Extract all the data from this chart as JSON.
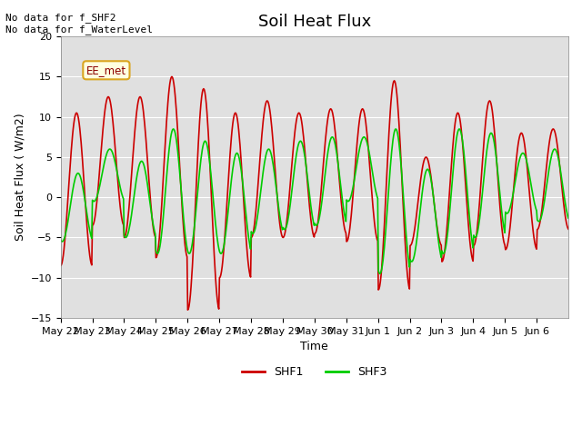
{
  "title": "Soil Heat Flux",
  "xlabel": "Time",
  "ylabel": "Soil Heat Flux ( W/m2)",
  "ylim": [
    -15,
    20
  ],
  "yticks": [
    -15,
    -10,
    -5,
    0,
    5,
    10,
    15,
    20
  ],
  "text_top_left": "No data for f_SHF2\nNo data for f_WaterLevel",
  "annotation_box": "EE_met",
  "shf1_color": "#cc0000",
  "shf3_color": "#00cc00",
  "background_color": "#e0e0e0",
  "legend_labels": [
    "SHF1",
    "SHF3"
  ],
  "x_tick_labels": [
    "May 22",
    "May 23",
    "May 24",
    "May 25",
    "May 26",
    "May 27",
    "May 28",
    "May 29",
    "May 30",
    "May 31",
    "Jun 1",
    "Jun 2",
    "Jun 3",
    "Jun 4",
    "Jun 5",
    "Jun 6"
  ],
  "num_days": 16,
  "shf1_peaks": [
    10.5,
    12.5,
    12.5,
    15.0,
    13.5,
    10.5,
    12.0,
    10.5,
    11.0,
    11.0,
    14.5,
    5.0,
    10.5,
    12.0,
    8.0,
    8.5
  ],
  "shf1_troughs": [
    -8.5,
    -3.5,
    -5.0,
    -7.5,
    -14.0,
    -10.0,
    -5.0,
    -5.0,
    -4.5,
    -5.5,
    -11.5,
    -6.0,
    -8.0,
    -6.0,
    -6.5,
    -4.0
  ],
  "shf3_peaks": [
    3.0,
    6.0,
    4.5,
    8.5,
    7.0,
    5.5,
    6.0,
    7.0,
    7.5,
    7.5,
    8.5,
    3.5,
    8.5,
    8.0,
    5.5,
    6.0
  ],
  "shf3_troughs": [
    -5.5,
    -0.5,
    -5.0,
    -7.0,
    -7.0,
    -7.0,
    -4.5,
    -4.0,
    -3.5,
    -0.5,
    -9.5,
    -8.0,
    -7.0,
    -5.0,
    -2.0,
    -3.0
  ]
}
